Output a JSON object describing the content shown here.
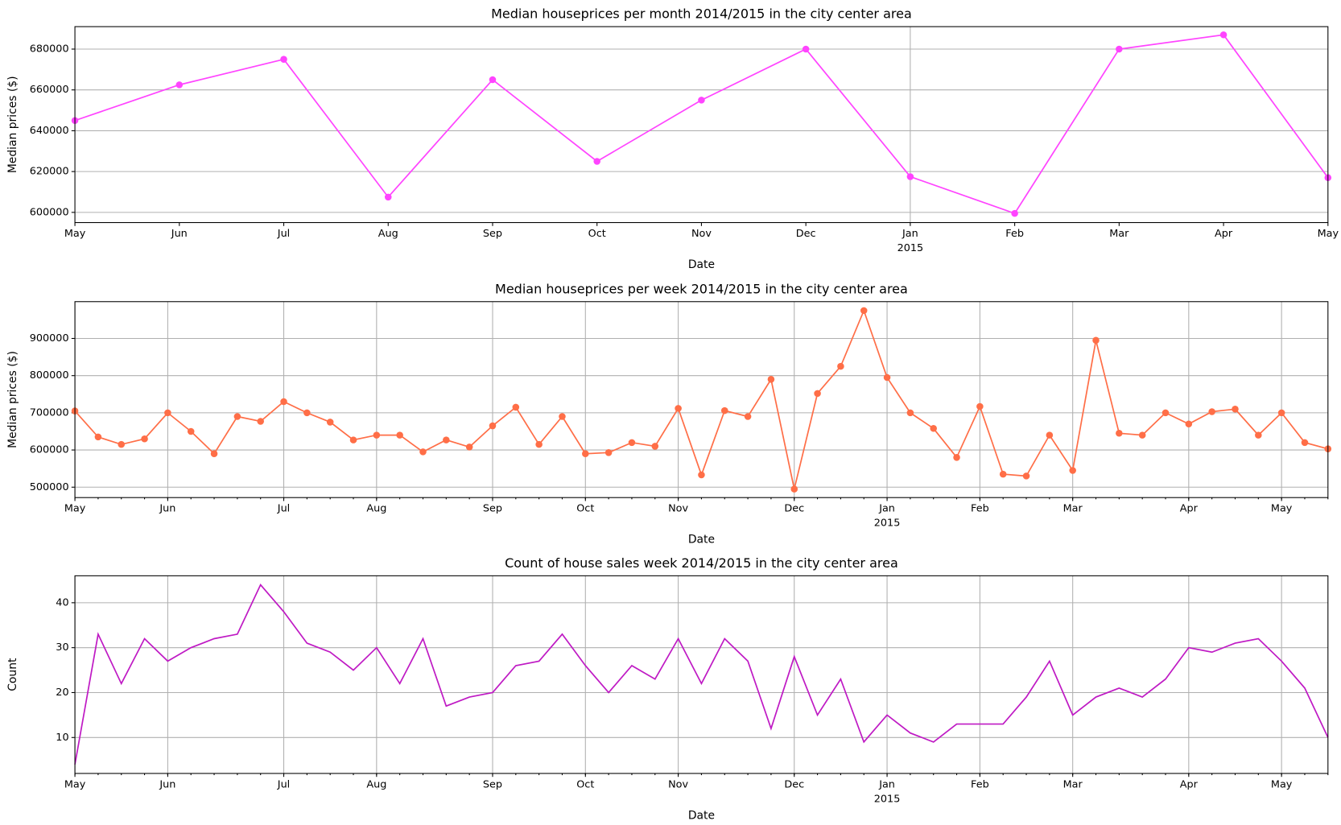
{
  "chart_data": [
    {
      "type": "line",
      "title": "Median houseprices per month 2014/2015 in the city center area",
      "xlabel": "Date",
      "ylabel": "Median prices ($)",
      "x": [
        "2014-05",
        "2014-06",
        "2014-07",
        "2014-08",
        "2014-09",
        "2014-10",
        "2014-11",
        "2014-12",
        "2015-01",
        "2015-02",
        "2015-03",
        "2015-04",
        "2015-05"
      ],
      "series": [
        {
          "name": "Median prices",
          "color": "#ff44ff",
          "values": [
            645000,
            662500,
            675000,
            607500,
            665000,
            625000,
            655000,
            680000,
            617500,
            599500,
            680000,
            687000,
            617000
          ]
        }
      ],
      "markers": true,
      "xlim": [
        "2014-05",
        "2015-05"
      ],
      "xticks": [
        {
          "value": "2014-05",
          "label": "May"
        },
        {
          "value": "2014-06",
          "label": "Jun"
        },
        {
          "value": "2014-07",
          "label": "Jul"
        },
        {
          "value": "2014-08",
          "label": "Aug"
        },
        {
          "value": "2014-09",
          "label": "Sep"
        },
        {
          "value": "2014-10",
          "label": "Oct"
        },
        {
          "value": "2014-11",
          "label": "Nov"
        },
        {
          "value": "2014-12",
          "label": "Dec"
        },
        {
          "value": "2015-01",
          "label": "Jan"
        },
        {
          "value": "2015-02",
          "label": "Feb"
        },
        {
          "value": "2015-03",
          "label": "Mar"
        },
        {
          "value": "2015-04",
          "label": "Apr"
        },
        {
          "value": "2015-05",
          "label": "May"
        }
      ],
      "year_labels": [
        {
          "value": "2015-01",
          "label": "2015"
        }
      ],
      "x_grid_at": [
        "2015-01"
      ],
      "ylim": [
        595000,
        691000
      ],
      "yticks": [
        600000,
        620000,
        640000,
        660000,
        680000
      ],
      "grid": true
    },
    {
      "type": "line",
      "title": "Median houseprices per week 2014/2015 in the city center area",
      "xlabel": "Date",
      "ylabel": "Median prices ($)",
      "x": [
        "2014-05-04",
        "2014-05-11",
        "2014-05-18",
        "2014-05-25",
        "2014-06-01",
        "2014-06-08",
        "2014-06-15",
        "2014-06-22",
        "2014-06-29",
        "2014-07-06",
        "2014-07-13",
        "2014-07-20",
        "2014-07-27",
        "2014-08-03",
        "2014-08-10",
        "2014-08-17",
        "2014-08-24",
        "2014-08-31",
        "2014-09-07",
        "2014-09-14",
        "2014-09-21",
        "2014-09-28",
        "2014-10-05",
        "2014-10-12",
        "2014-10-19",
        "2014-10-26",
        "2014-11-02",
        "2014-11-09",
        "2014-11-16",
        "2014-11-23",
        "2014-11-30",
        "2014-12-07",
        "2014-12-14",
        "2014-12-21",
        "2014-12-28",
        "2015-01-04",
        "2015-01-11",
        "2015-01-18",
        "2015-01-25",
        "2015-02-01",
        "2015-02-08",
        "2015-02-15",
        "2015-02-22",
        "2015-03-01",
        "2015-03-08",
        "2015-03-15",
        "2015-03-22",
        "2015-03-29",
        "2015-04-05",
        "2015-04-12",
        "2015-04-19",
        "2015-04-26",
        "2015-05-03",
        "2015-05-10",
        "2015-05-17"
      ],
      "series": [
        {
          "name": "Median prices",
          "color": "#ff6e47",
          "values": [
            705000,
            635000,
            615000,
            630000,
            700000,
            650000,
            590000,
            690000,
            677000,
            730000,
            700000,
            675000,
            627000,
            640000,
            640000,
            595000,
            627000,
            608000,
            665000,
            715000,
            615000,
            690000,
            590000,
            593000,
            620000,
            610000,
            712000,
            533000,
            706000,
            690000,
            790000,
            495000,
            752000,
            825000,
            975000,
            795000,
            700000,
            658000,
            580000,
            717000,
            535000,
            530000,
            640000,
            545000,
            895000,
            645000,
            640000,
            700000,
            670000,
            703000,
            710000,
            640000,
            700000,
            620000,
            603000
          ]
        }
      ],
      "markers": true,
      "xlim": [
        "2014-05-04",
        "2015-05-17"
      ],
      "xticks": [
        {
          "value": "2014-05-04",
          "label": "May"
        },
        {
          "value": "2014-06-01",
          "label": "Jun"
        },
        {
          "value": "2014-07-06",
          "label": "Jul"
        },
        {
          "value": "2014-08-03",
          "label": "Aug"
        },
        {
          "value": "2014-09-07",
          "label": "Sep"
        },
        {
          "value": "2014-10-05",
          "label": "Oct"
        },
        {
          "value": "2014-11-02",
          "label": "Nov"
        },
        {
          "value": "2014-12-07",
          "label": "Dec"
        },
        {
          "value": "2015-01-04",
          "label": "Jan"
        },
        {
          "value": "2015-02-01",
          "label": "Feb"
        },
        {
          "value": "2015-03-01",
          "label": "Mar"
        },
        {
          "value": "2015-04-05",
          "label": "Apr"
        },
        {
          "value": "2015-05-03",
          "label": "May"
        }
      ],
      "year_labels": [
        {
          "value": "2015-01-04",
          "label": "2015"
        }
      ],
      "ylim": [
        472000,
        999000
      ],
      "yticks": [
        500000,
        600000,
        700000,
        800000,
        900000
      ],
      "grid": true
    },
    {
      "type": "line",
      "title": "Count of house sales week 2014/2015 in the city center area",
      "xlabel": "Date",
      "ylabel": "Count",
      "x": [
        "2014-05-04",
        "2014-05-11",
        "2014-05-18",
        "2014-05-25",
        "2014-06-01",
        "2014-06-08",
        "2014-06-15",
        "2014-06-22",
        "2014-06-29",
        "2014-07-06",
        "2014-07-13",
        "2014-07-20",
        "2014-07-27",
        "2014-08-03",
        "2014-08-10",
        "2014-08-17",
        "2014-08-24",
        "2014-08-31",
        "2014-09-07",
        "2014-09-14",
        "2014-09-21",
        "2014-09-28",
        "2014-10-05",
        "2014-10-12",
        "2014-10-19",
        "2014-10-26",
        "2014-11-02",
        "2014-11-09",
        "2014-11-16",
        "2014-11-23",
        "2014-11-30",
        "2014-12-07",
        "2014-12-14",
        "2014-12-21",
        "2014-12-28",
        "2015-01-04",
        "2015-01-11",
        "2015-01-18",
        "2015-01-25",
        "2015-02-01",
        "2015-02-08",
        "2015-02-15",
        "2015-02-22",
        "2015-03-01",
        "2015-03-08",
        "2015-03-15",
        "2015-03-22",
        "2015-03-29",
        "2015-04-05",
        "2015-04-12",
        "2015-04-19",
        "2015-04-26",
        "2015-05-03",
        "2015-05-10",
        "2015-05-17"
      ],
      "series": [
        {
          "name": "Count",
          "color": "#bf1ac4",
          "values": [
            4,
            33,
            22,
            32,
            27,
            30,
            32,
            33,
            44,
            38,
            31,
            29,
            25,
            30,
            22,
            32,
            17,
            19,
            20,
            26,
            27,
            33,
            26,
            20,
            26,
            23,
            32,
            22,
            32,
            27,
            12,
            28,
            15,
            23,
            9,
            15,
            11,
            9,
            13,
            13,
            13,
            19,
            27,
            15,
            19,
            21,
            19,
            23,
            30,
            29,
            31,
            32,
            27,
            21,
            10
          ]
        }
      ],
      "markers": false,
      "xlim": [
        "2014-05-04",
        "2015-05-17"
      ],
      "xticks": [
        {
          "value": "2014-05-04",
          "label": "May"
        },
        {
          "value": "2014-06-01",
          "label": "Jun"
        },
        {
          "value": "2014-07-06",
          "label": "Jul"
        },
        {
          "value": "2014-08-03",
          "label": "Aug"
        },
        {
          "value": "2014-09-07",
          "label": "Sep"
        },
        {
          "value": "2014-10-05",
          "label": "Oct"
        },
        {
          "value": "2014-11-02",
          "label": "Nov"
        },
        {
          "value": "2014-12-07",
          "label": "Dec"
        },
        {
          "value": "2015-01-04",
          "label": "Jan"
        },
        {
          "value": "2015-02-01",
          "label": "Feb"
        },
        {
          "value": "2015-03-01",
          "label": "Mar"
        },
        {
          "value": "2015-04-05",
          "label": "Apr"
        },
        {
          "value": "2015-05-03",
          "label": "May"
        }
      ],
      "year_labels": [
        {
          "value": "2015-01-04",
          "label": "2015"
        }
      ],
      "ylim": [
        2,
        46
      ],
      "yticks": [
        10,
        20,
        30,
        40
      ],
      "grid": true
    }
  ]
}
